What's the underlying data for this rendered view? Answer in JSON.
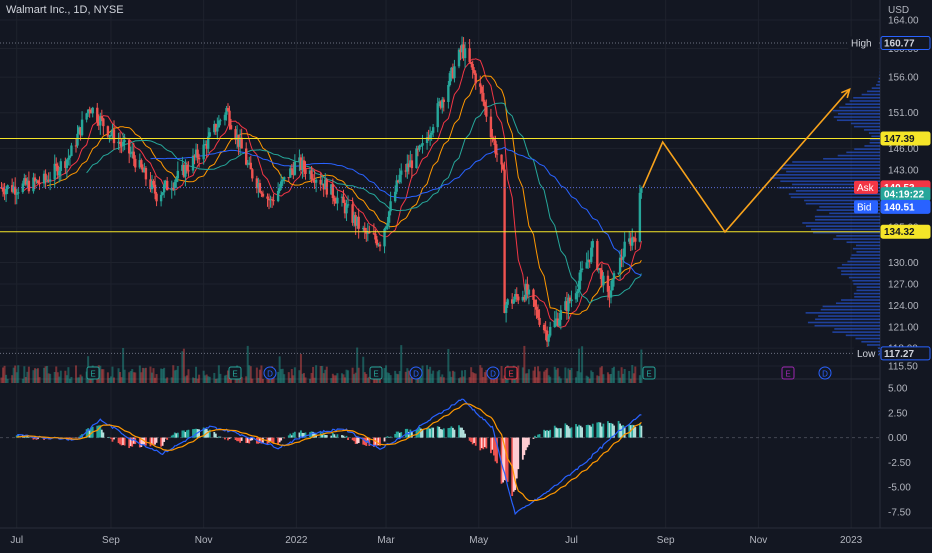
{
  "header": {
    "symbol_title": "Walmart Inc., 1D, NYSE",
    "currency": "USD"
  },
  "colors": {
    "bg": "#131722",
    "grid": "#1e222d",
    "up": "#26a69a",
    "down": "#ef5350",
    "ma_fast": "#f23645",
    "ma_mid": "#ff9800",
    "ma_slow": "#26a69a",
    "ma_long": "#2962ff",
    "level": "#f5e528",
    "projection": "#f7a21b",
    "volume_profile": "#2962ff",
    "macd": "#2962ff",
    "signal": "#ff9800"
  },
  "price_axis": {
    "ticks": [
      "164.00",
      "160.00",
      "156.00",
      "151.00",
      "146.00",
      "143.00",
      "135.00",
      "130.00",
      "127.00",
      "124.00",
      "121.00",
      "118.00",
      "115.50"
    ],
    "tick_values": [
      164,
      160,
      156,
      151,
      146,
      143,
      135,
      130,
      127,
      124,
      121,
      118,
      115.5
    ],
    "labels": [
      {
        "text": "High",
        "value": "160.77",
        "price": 160.77,
        "bg": "#131722",
        "border": "#2962ff",
        "fg": "#d1d4dc"
      },
      {
        "text": "",
        "value": "147.39",
        "price": 147.39,
        "bg": "#f5e528",
        "border": "#f5e528",
        "fg": "#131722"
      },
      {
        "text": "Ask",
        "value": "140.53",
        "price": 140.53,
        "bg": "#f23645",
        "border": "#f23645",
        "fg": "#ffffff",
        "tag_bg": "#f23645"
      },
      {
        "text": "",
        "value": "04:19:22",
        "price": 139.6,
        "bg": "#26a69a",
        "border": "#26a69a",
        "fg": "#ffffff"
      },
      {
        "text": "Bid",
        "value": "140.51",
        "price": 137.8,
        "bg": "#2962ff",
        "border": "#2962ff",
        "fg": "#ffffff",
        "tag_bg": "#2962ff"
      },
      {
        "text": "",
        "value": "134.32",
        "price": 134.32,
        "bg": "#f5e528",
        "border": "#f5e528",
        "fg": "#131722"
      },
      {
        "text": "Low",
        "value": "117.27",
        "price": 117.27,
        "bg": "#131722",
        "border": "#2962ff",
        "fg": "#d1d4dc"
      }
    ]
  },
  "macd_axis": {
    "ticks": [
      "5.00",
      "2.50",
      "0.00",
      "-2.50",
      "-5.00",
      "-7.50"
    ],
    "tick_values": [
      5,
      2.5,
      0,
      -2.5,
      -5,
      -7.5
    ]
  },
  "time_axis": [
    "Jul",
    "Sep",
    "Nov",
    "2022",
    "Mar",
    "May",
    "Jul",
    "Sep",
    "Nov",
    "2023"
  ],
  "levels": {
    "resistance": 147.39,
    "support": 134.32,
    "dotted_top": 160.77,
    "dotted_bid": 140.51,
    "dotted_low": 117.27
  },
  "events": [
    {
      "letter": "E",
      "type": "earnings",
      "color": "#26a69a"
    },
    {
      "letter": "E",
      "type": "earnings",
      "color": "#26a69a"
    },
    {
      "letter": "D",
      "type": "dividend",
      "color": "#2962ff"
    },
    {
      "letter": "E",
      "type": "earnings",
      "color": "#26a69a"
    },
    {
      "letter": "D",
      "type": "dividend",
      "color": "#2962ff"
    },
    {
      "letter": "D",
      "type": "dividend",
      "color": "#2962ff"
    },
    {
      "letter": "E",
      "type": "earnings",
      "color": "#f23645"
    },
    {
      "letter": "E",
      "type": "earnings",
      "color": "#26a69a"
    },
    {
      "letter": "E",
      "type": "future-earnings",
      "color": "#9c27b0"
    },
    {
      "letter": "D",
      "type": "future-dividend",
      "color": "#2962ff"
    }
  ],
  "chart_data": {
    "type": "candlestick",
    "title": "Walmart Inc., 1D, NYSE",
    "ylim": [
      115.5,
      164
    ],
    "price_path": [
      {
        "x": "2021-07-01",
        "close": 140.5
      },
      {
        "x": "2021-07-20",
        "close": 141.5
      },
      {
        "x": "2021-08-05",
        "close": 145
      },
      {
        "x": "2021-08-18",
        "close": 152
      },
      {
        "x": "2021-09-01",
        "close": 148
      },
      {
        "x": "2021-09-15",
        "close": 145
      },
      {
        "x": "2021-10-01",
        "close": 139.5
      },
      {
        "x": "2021-10-15",
        "close": 142
      },
      {
        "x": "2021-11-01",
        "close": 146
      },
      {
        "x": "2021-11-16",
        "close": 151.5
      },
      {
        "x": "2021-12-01",
        "close": 143
      },
      {
        "x": "2021-12-15",
        "close": 138.5
      },
      {
        "x": "2022-01-01",
        "close": 144
      },
      {
        "x": "2022-01-15",
        "close": 142
      },
      {
        "x": "2022-02-01",
        "close": 138
      },
      {
        "x": "2022-02-15",
        "close": 134
      },
      {
        "x": "2022-02-25",
        "close": 133
      },
      {
        "x": "2022-03-10",
        "close": 142
      },
      {
        "x": "2022-03-25",
        "close": 146
      },
      {
        "x": "2022-04-05",
        "close": 152
      },
      {
        "x": "2022-04-20",
        "close": 160
      },
      {
        "x": "2022-05-01",
        "close": 155
      },
      {
        "x": "2022-05-12",
        "close": 146
      },
      {
        "x": "2022-05-17",
        "close": 142
      },
      {
        "x": "2022-05-18",
        "close": 124
      },
      {
        "x": "2022-06-01",
        "close": 126
      },
      {
        "x": "2022-06-15",
        "close": 120
      },
      {
        "x": "2022-07-01",
        "close": 125
      },
      {
        "x": "2022-07-15",
        "close": 132
      },
      {
        "x": "2022-07-25",
        "close": 125
      },
      {
        "x": "2022-08-05",
        "close": 132
      },
      {
        "x": "2022-08-12",
        "close": 134
      },
      {
        "x": "2022-08-16",
        "close": 140.5
      }
    ],
    "projection": [
      {
        "x": "2022-08-17",
        "price": 140.5
      },
      {
        "x": "2022-08-30",
        "price": 146.9
      },
      {
        "x": "2022-10-10",
        "price": 134.3
      },
      {
        "x": "2022-12-31",
        "price": 154.3
      }
    ],
    "volume_profile_peaks": [
      {
        "price": 151,
        "weight": 0.5
      },
      {
        "price": 143,
        "weight": 0.9
      },
      {
        "price": 140,
        "weight": 1.0
      },
      {
        "price": 135,
        "weight": 0.7
      },
      {
        "price": 129,
        "weight": 0.45
      },
      {
        "price": 123,
        "weight": 0.5
      },
      {
        "price": 121,
        "weight": 0.35
      }
    ],
    "macd_path": [
      {
        "x": "2021-07-01",
        "macd": 0.2
      },
      {
        "x": "2021-08-10",
        "macd": -0.2
      },
      {
        "x": "2021-08-25",
        "macd": 1.8
      },
      {
        "x": "2021-09-15",
        "macd": -0.2
      },
      {
        "x": "2021-10-05",
        "macd": -1.6
      },
      {
        "x": "2021-11-05",
        "macd": 1.1
      },
      {
        "x": "2021-11-20",
        "macd": 0.6
      },
      {
        "x": "2021-12-20",
        "macd": -1.0
      },
      {
        "x": "2022-01-10",
        "macd": 0.4
      },
      {
        "x": "2022-02-01",
        "macd": 0.9
      },
      {
        "x": "2022-02-25",
        "macd": -1.1
      },
      {
        "x": "2022-03-20",
        "macd": 0.8
      },
      {
        "x": "2022-04-20",
        "macd": 3.9
      },
      {
        "x": "2022-05-10",
        "macd": 1.0
      },
      {
        "x": "2022-05-25",
        "macd": -7.7
      },
      {
        "x": "2022-06-15",
        "macd": -5.5
      },
      {
        "x": "2022-07-10",
        "macd": -2.5
      },
      {
        "x": "2022-08-01",
        "macd": 0.6
      },
      {
        "x": "2022-08-16",
        "macd": 2.4
      }
    ],
    "ylabel": "",
    "xlabel": ""
  }
}
